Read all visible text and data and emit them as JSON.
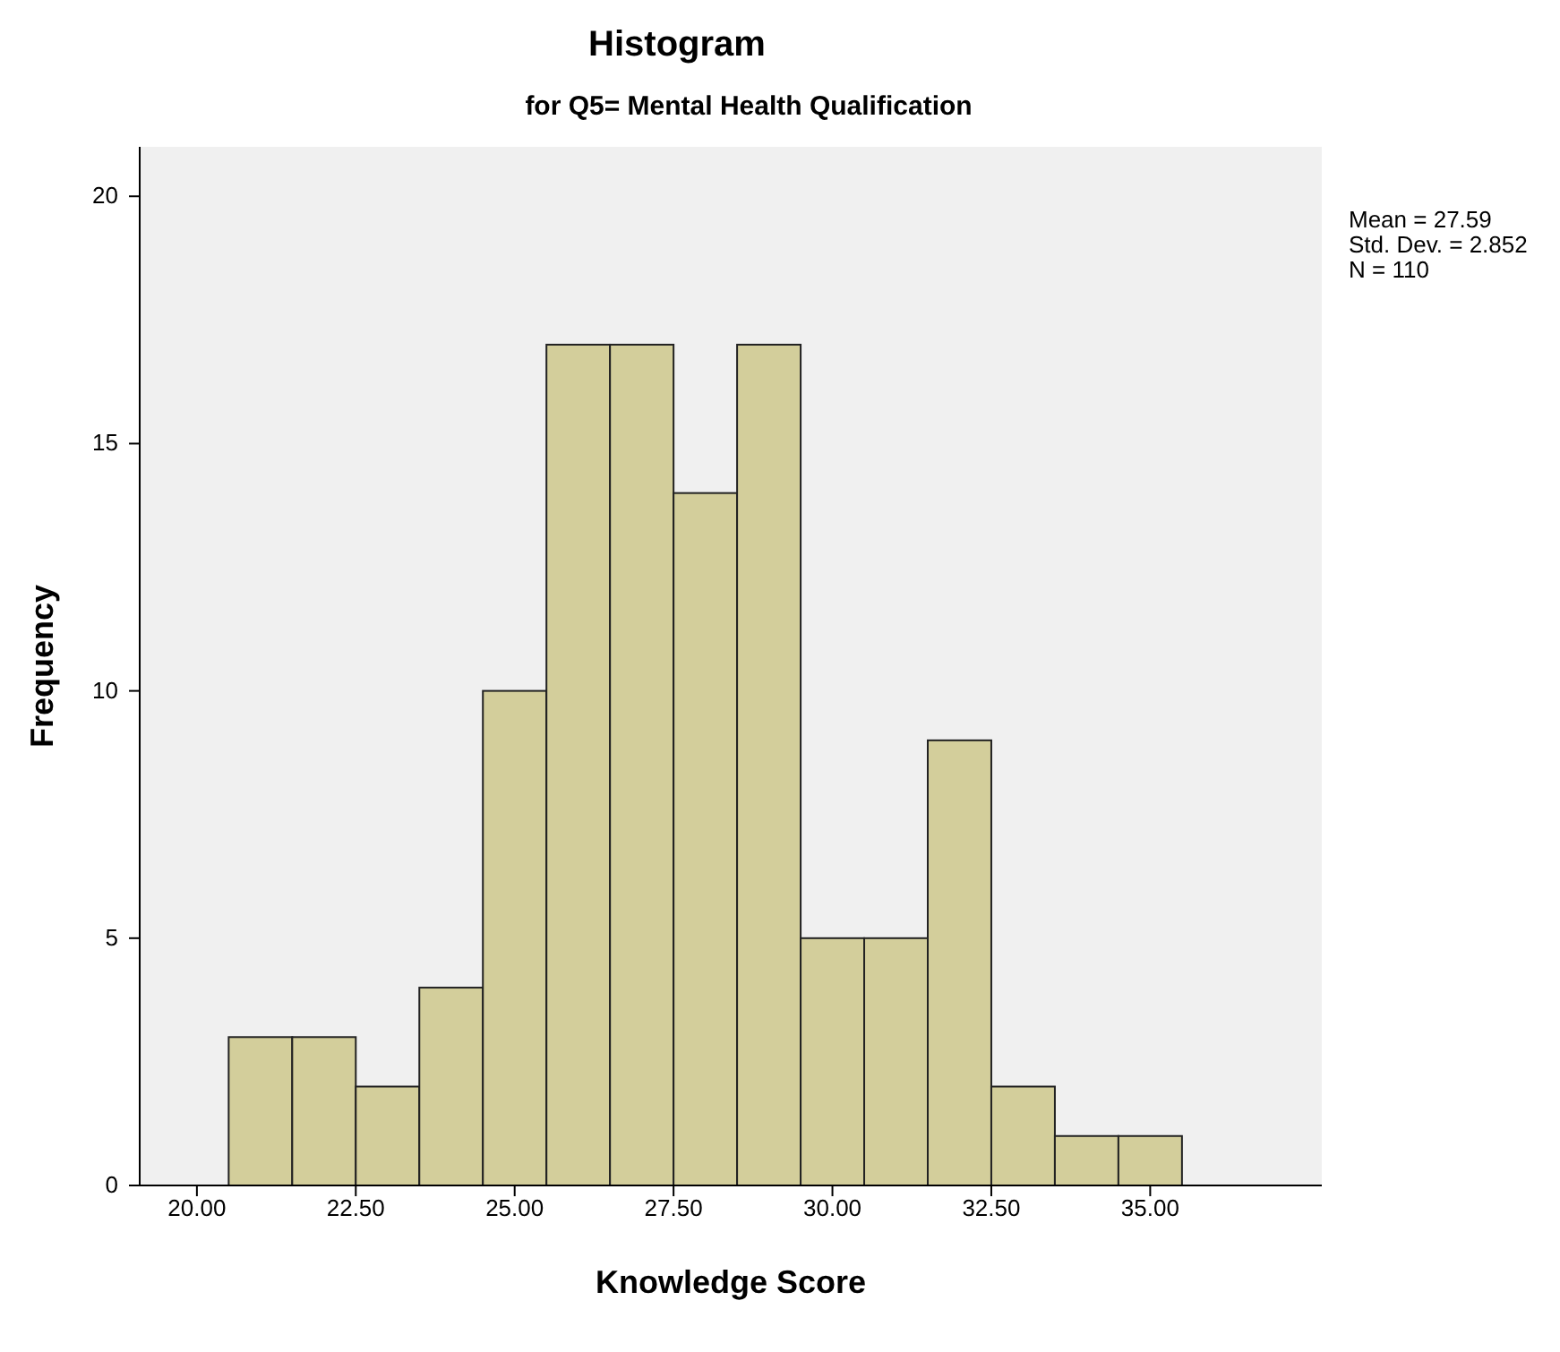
{
  "chart_data": {
    "type": "histogram",
    "title": "Histogram",
    "subtitle": "for Q5= Mental Health Qualification",
    "xlabel": "Knowledge Score",
    "ylabel": "Frequency",
    "bins": [
      20.5,
      21.5,
      22.5,
      23.5,
      24.5,
      25.5,
      26.5,
      27.5,
      28.5,
      29.5,
      30.5,
      31.5,
      32.5,
      33.5,
      34.5,
      35.5
    ],
    "values": [
      3,
      3,
      2,
      4,
      10,
      17,
      17,
      14,
      17,
      5,
      5,
      9,
      2,
      1,
      1
    ],
    "color": "#d3ce9b",
    "xlim": [
      19.1,
      37.7
    ],
    "xticks": [
      {
        "value": 20,
        "label": "20.00"
      },
      {
        "value": 22.5,
        "label": "22.50"
      },
      {
        "value": 25,
        "label": "25.00"
      },
      {
        "value": 27.5,
        "label": "27.50"
      },
      {
        "value": 30,
        "label": "30.00"
      },
      {
        "value": 32.5,
        "label": "32.50"
      },
      {
        "value": 35,
        "label": "35.00"
      }
    ],
    "ylim": [
      0,
      21
    ],
    "yticks": [
      0,
      5,
      10,
      15,
      20
    ],
    "annotations": [
      "Mean = 27.59",
      "Std. Dev. = 2.852",
      "N = 110"
    ]
  }
}
